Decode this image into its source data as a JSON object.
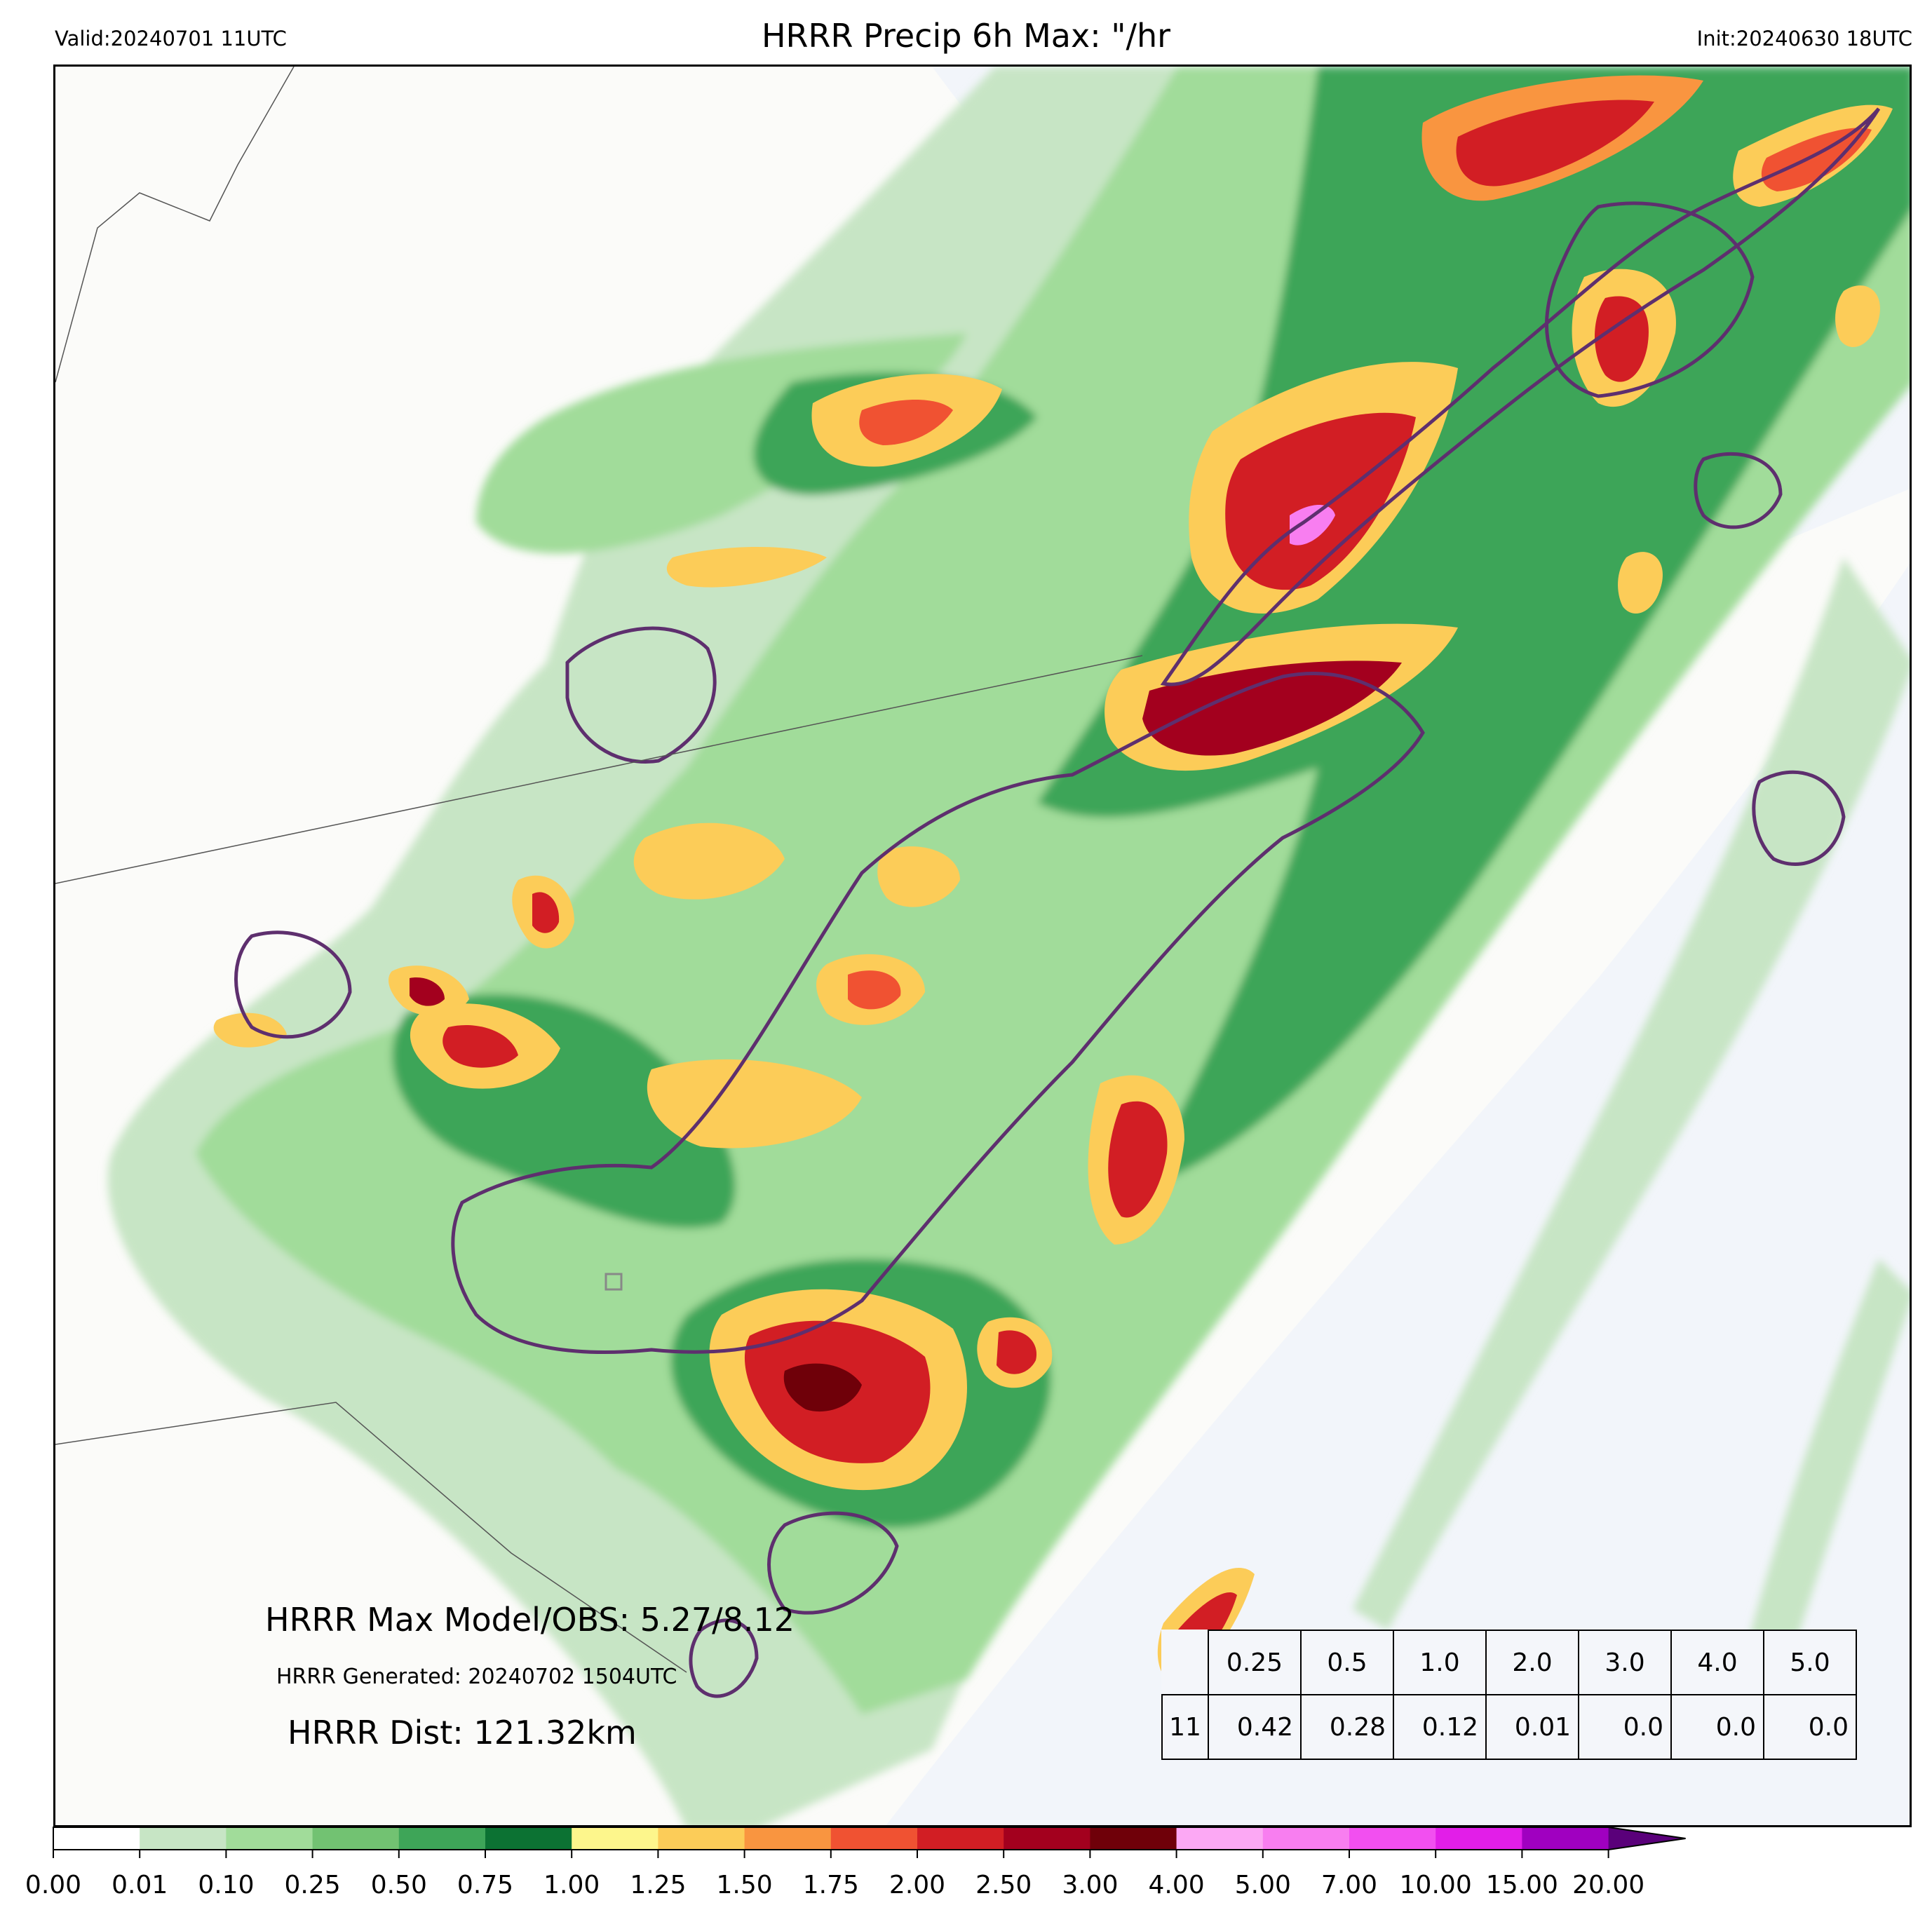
{
  "header": {
    "valid": "Valid:20240701 11UTC",
    "title": "HRRR Precip 6h Max: \"/hr",
    "init": "Init:20240630 18UTC"
  },
  "annotations": {
    "max_model_obs": "HRRR Max Model/OBS: 5.27/8.12",
    "generated": "HRRR Generated: 20240702 1504UTC",
    "dist": "HRRR Dist: 121.32km"
  },
  "stats_table": {
    "thresholds": [
      "0.25",
      "0.5",
      "1.0",
      "2.0",
      "3.0",
      "4.0",
      "5.0"
    ],
    "row_label": "11",
    "values": [
      "0.42",
      "0.28",
      "0.12",
      "0.01",
      "0.0",
      "0.0",
      "0.0"
    ]
  },
  "colorbar": {
    "ticks": [
      "0.00",
      "0.01",
      "0.10",
      "0.25",
      "0.50",
      "0.75",
      "1.00",
      "1.25",
      "1.50",
      "1.75",
      "2.00",
      "2.50",
      "3.00",
      "4.00",
      "5.00",
      "7.00",
      "10.00",
      "15.00",
      "20.00"
    ],
    "colors": [
      "#ffffff",
      "#c7e5c5",
      "#a1dc9a",
      "#72c272",
      "#3ea558",
      "#0c7233",
      "#fdf68c",
      "#fccc58",
      "#f99540",
      "#f05232",
      "#d21e24",
      "#a3001e",
      "#6f0009",
      "#fca8f4",
      "#f87ef0",
      "#f24ff0",
      "#e21ee8",
      "#a000c0"
    ],
    "extend_color": "#5a007a"
  },
  "map_colors": {
    "land": "#fbfbf9",
    "ocean": "#f2f5fa",
    "obs_contour": "#5e2f6e",
    "borders": "#555555"
  }
}
